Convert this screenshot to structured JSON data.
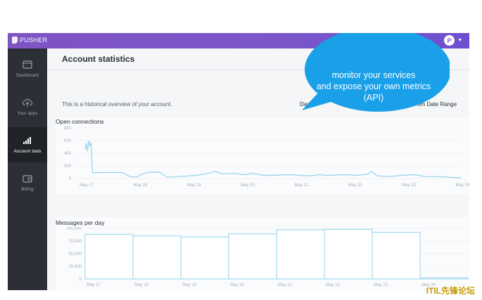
{
  "app": {
    "brand": "PUSHER",
    "avatar_initial": "P"
  },
  "sidebar": {
    "items": [
      {
        "label": "Dashboard",
        "icon": "dashboard-icon",
        "active": false
      },
      {
        "label": "Your apps",
        "icon": "cloud-upload-icon",
        "active": false
      },
      {
        "label": "Account stats",
        "icon": "bar-chart-icon",
        "active": true
      },
      {
        "label": "Billing",
        "icon": "wallet-icon",
        "active": false
      }
    ]
  },
  "page": {
    "title": "Account statistics",
    "description": "This is a historical overview of your account.",
    "range_day": "Day",
    "range_custom": "om Date Range"
  },
  "callout": {
    "lines": [
      "monitor your services",
      "and expose your own metrics",
      "(API)"
    ]
  },
  "watermark": "ITIL先锋论坛",
  "chart_data": [
    {
      "type": "line",
      "title": "Open connections",
      "y_ticks": [
        "800",
        "600",
        "400",
        "200",
        "0"
      ],
      "ylim": [
        0,
        800
      ],
      "x_tick_labels": [
        "May 17",
        "May 18",
        "May 19",
        "May 20",
        "May 21",
        "May 22",
        "May 23",
        "May 24"
      ],
      "color": "#8fd3ec",
      "series": [
        {
          "points": [
            [
              0,
              450
            ],
            [
              0.03,
              560
            ],
            [
              0.06,
              430
            ],
            [
              0.1,
              600
            ],
            [
              0.13,
              520
            ],
            [
              0.16,
              560
            ],
            [
              0.2,
              90
            ],
            [
              0.5,
              95
            ],
            [
              1.0,
              95
            ],
            [
              1.2,
              30
            ],
            [
              1.4,
              25
            ],
            [
              1.5,
              60
            ],
            [
              1.7,
              100
            ],
            [
              2.0,
              100
            ],
            [
              2.2,
              20
            ],
            [
              2.5,
              30
            ],
            [
              2.8,
              40
            ],
            [
              3.0,
              50
            ],
            [
              3.3,
              80
            ],
            [
              3.5,
              110
            ],
            [
              3.7,
              70
            ],
            [
              4.0,
              80
            ],
            [
              4.3,
              60
            ],
            [
              4.5,
              80
            ],
            [
              4.8,
              50
            ],
            [
              5.0,
              50
            ],
            [
              5.5,
              60
            ],
            [
              6.0,
              40
            ],
            [
              6.3,
              60
            ],
            [
              6.5,
              50
            ],
            [
              7.0,
              60
            ],
            [
              7.3,
              50
            ],
            [
              7.6,
              70
            ],
            [
              7.7,
              110
            ],
            [
              7.85,
              40
            ],
            [
              8.2,
              30
            ],
            [
              8.5,
              50
            ],
            [
              8.9,
              60
            ],
            [
              9.1,
              30
            ],
            [
              9.5,
              30
            ],
            [
              9.8,
              20
            ],
            [
              10.1,
              10
            ]
          ]
        }
      ]
    },
    {
      "type": "area",
      "title": "Messages per day",
      "y_ticks": [
        "100,000",
        "75,000",
        "50,000",
        "25,000",
        "0"
      ],
      "ylim": [
        0,
        100000
      ],
      "x_tick_labels": [
        "May 17",
        "May 18",
        "May 19",
        "May 20",
        "May 21",
        "May 22",
        "May 23",
        "May 24"
      ],
      "color": "#8fd3ec",
      "values": [
        88000,
        85000,
        83000,
        89000,
        97000,
        98000,
        92000,
        2000
      ]
    }
  ]
}
